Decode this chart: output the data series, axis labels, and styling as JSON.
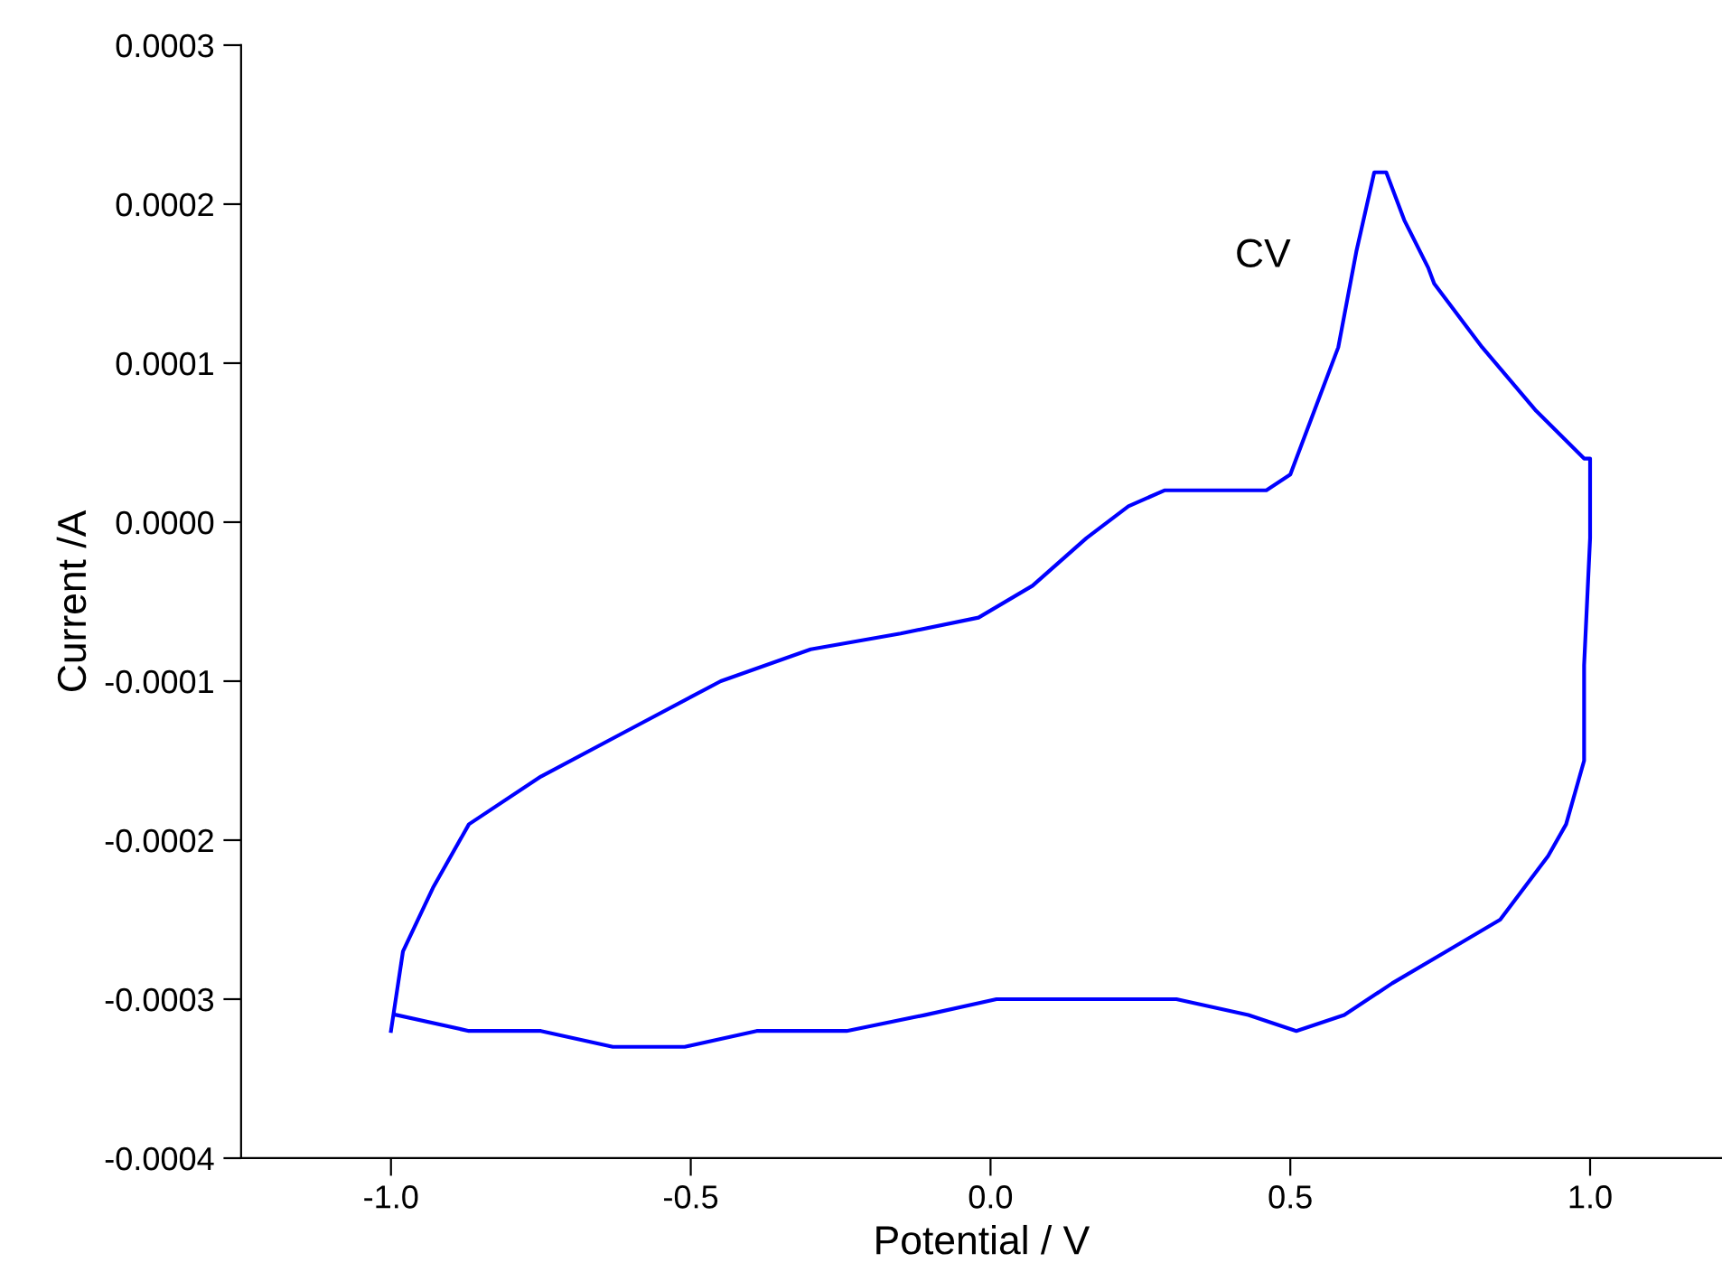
{
  "chart_data": {
    "type": "line",
    "xlabel": "Potential / V",
    "ylabel": "Current /A",
    "xlim": [
      -1.25,
      1.22
    ],
    "ylim": [
      -0.0004,
      0.0003
    ],
    "xticks": [
      {
        "value": -1.0,
        "label": "-1.0"
      },
      {
        "value": -0.5,
        "label": "-0.5"
      },
      {
        "value": 0.0,
        "label": "0.0"
      },
      {
        "value": 0.5,
        "label": "0.5"
      },
      {
        "value": 1.0,
        "label": "1.0"
      }
    ],
    "yticks": [
      {
        "value": -0.0004,
        "label": "-0.0004"
      },
      {
        "value": -0.0003,
        "label": "-0.0003"
      },
      {
        "value": -0.0002,
        "label": "-0.0002"
      },
      {
        "value": -0.0001,
        "label": "-0.0001"
      },
      {
        "value": 0.0,
        "label": "0.0000"
      },
      {
        "value": 0.0001,
        "label": "0.0001"
      },
      {
        "value": 0.0002,
        "label": "0.0002"
      },
      {
        "value": 0.0003,
        "label": "0.0003"
      }
    ],
    "grid": false,
    "legend": false,
    "marker": "none",
    "line_style": "solid",
    "series": [
      {
        "name": "CV",
        "color": "#0000ff",
        "x": [
          -0.99,
          -0.87,
          -0.75,
          -0.63,
          -0.51,
          -0.39,
          -0.24,
          -0.11,
          0.01,
          0.1,
          0.19,
          0.31,
          0.43,
          0.51,
          0.59,
          0.67,
          0.76,
          0.85,
          0.93,
          0.96,
          0.99,
          0.99,
          1.0,
          1.0,
          0.99,
          0.91,
          0.82,
          0.74,
          0.73,
          0.69,
          0.66,
          0.64,
          0.61,
          0.58,
          0.54,
          0.5,
          0.46,
          0.41,
          0.35,
          0.29,
          0.23,
          0.16,
          0.07,
          -0.02,
          -0.15,
          -0.3,
          -0.45,
          -0.6,
          -0.75,
          -0.87,
          -0.93,
          -0.98,
          -1.0
        ],
        "values": [
          -0.00031,
          -0.00032,
          -0.00032,
          -0.00033,
          -0.00033,
          -0.00032,
          -0.00032,
          -0.00031,
          -0.0003,
          -0.0003,
          -0.0003,
          -0.0003,
          -0.00031,
          -0.00032,
          -0.00031,
          -0.00029,
          -0.00027,
          -0.00025,
          -0.00021,
          -0.00019,
          -0.00015,
          -9e-05,
          -1e-05,
          4e-05,
          4e-05,
          7e-05,
          0.00011,
          0.00015,
          0.00016,
          0.00019,
          0.00022,
          0.00022,
          0.00017,
          0.00011,
          7e-05,
          3e-05,
          2e-05,
          2e-05,
          2e-05,
          2e-05,
          1e-05,
          -1e-05,
          -4e-05,
          -6e-05,
          -7e-05,
          -8e-05,
          -0.0001,
          -0.00013,
          -0.00016,
          -0.00019,
          -0.00023,
          -0.00027,
          -0.00032
        ]
      }
    ]
  }
}
